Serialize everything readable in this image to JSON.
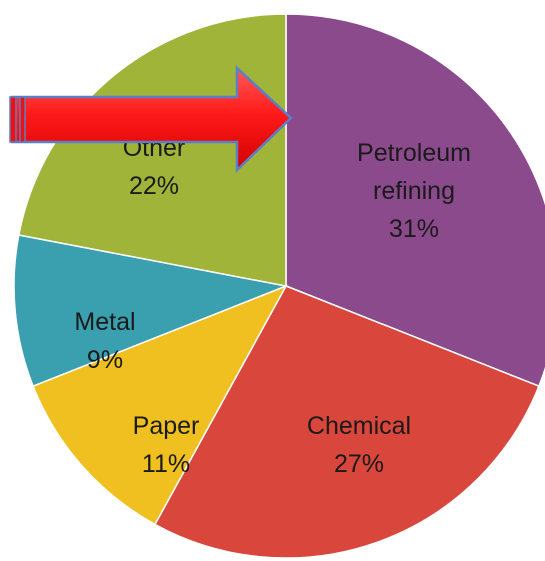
{
  "chart_data": {
    "type": "pie",
    "start_angle": "12 o'clock",
    "direction": "clockwise",
    "slices": [
      {
        "label_lines": [
          "Petroleum",
          "refining"
        ],
        "percent_label": "31%",
        "value": 31,
        "color": "#8B4A8C"
      },
      {
        "label_lines": [
          "Chemical"
        ],
        "percent_label": "27%",
        "value": 27,
        "color": "#D9463B"
      },
      {
        "label_lines": [
          "Paper"
        ],
        "percent_label": "11%",
        "value": 11,
        "color": "#EFC01F"
      },
      {
        "label_lines": [
          "Metal"
        ],
        "percent_label": "9%",
        "value": 9,
        "color": "#3AA0B0"
      },
      {
        "label_lines": [
          "Other"
        ],
        "percent_label": "22%",
        "value": 22,
        "color": "#A0B43A"
      }
    ],
    "annotation": {
      "shape": "arrow",
      "direction": "right",
      "color": "#EE1111",
      "points_to": "Petroleum refining"
    },
    "slice_border_color": "#FFFFFF"
  }
}
